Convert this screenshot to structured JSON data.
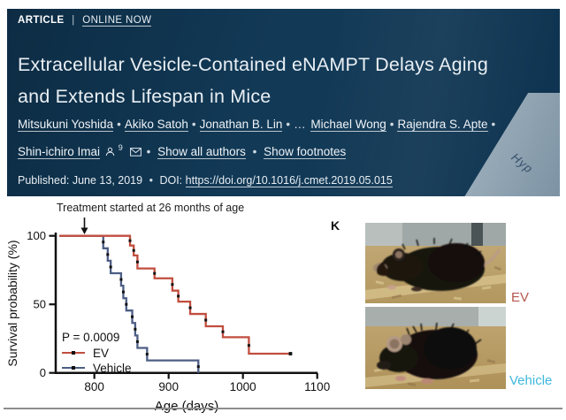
{
  "header": {
    "kicker_article": "ARTICLE",
    "kicker_sep": "|",
    "kicker_online": "ONLINE NOW",
    "title_line1": "Extracellular Vesicle-Contained eNAMPT Delays Aging",
    "title_line2": "and Extends Lifespan in Mice",
    "authors": [
      "Mitsukuni Yoshida",
      "Akiko Satoh",
      "Jonathan B. Lin",
      "…",
      "Michael Wong",
      "Rajendra S. Apte",
      "Shin-ichiro Imai"
    ],
    "author_sep": "•",
    "author_superscript": "9",
    "show_all_authors": "Show all authors",
    "show_footnotes": "Show footnotes",
    "published": "Published: June 13, 2019",
    "doi_label": "DOI:",
    "doi_url": "https://doi.org/10.1016/j.cmet.2019.05.015",
    "ribbon_text": "Hyp"
  },
  "figure": {
    "annotation": "Treatment started at 26 months of age",
    "panel_label": "K",
    "photo_label_top": "EV",
    "photo_label_bottom": "Vehicle",
    "photo_label_top_color": "#b5584c",
    "photo_label_bottom_color": "#3eb8dc"
  },
  "chart_data": {
    "type": "line",
    "subtype": "kaplan-meier-step",
    "title": "",
    "xlabel": "Age (days)",
    "ylabel": "Survival probability (%)",
    "xlim": [
      748,
      1100
    ],
    "ylim": [
      0,
      100
    ],
    "x_ticks": [
      800,
      900,
      1000,
      1100
    ],
    "y_ticks": [
      0,
      50,
      100
    ],
    "grid": false,
    "legend_position": "lower-left",
    "p_value": "P = 0.0009",
    "treatment_start_annotation_x": 790,
    "series": [
      {
        "name": "EV",
        "color": "#c14e3f",
        "start_x": 753,
        "end_x": 1064,
        "censored_end": true,
        "steps": [
          [
            848,
            92.9
          ],
          [
            853,
            85.7
          ],
          [
            858,
            76.2
          ],
          [
            881,
            69.0
          ],
          [
            905,
            60.0
          ],
          [
            913,
            52.0
          ],
          [
            929,
            43.0
          ],
          [
            950,
            34.0
          ],
          [
            973,
            26.0
          ],
          [
            1008,
            14.0
          ]
        ]
      },
      {
        "name": "Vehicle",
        "color": "#4d5e85",
        "start_x": 753,
        "end_x": 940,
        "censored_end": false,
        "steps": [
          [
            812,
            90.9
          ],
          [
            818,
            81.8
          ],
          [
            822,
            72.7
          ],
          [
            836,
            63.6
          ],
          [
            839,
            54.5
          ],
          [
            843,
            45.5
          ],
          [
            851,
            36.4
          ],
          [
            855,
            27.3
          ],
          [
            858,
            18.2
          ],
          [
            871,
            9.1
          ],
          [
            940,
            0
          ]
        ]
      }
    ]
  }
}
